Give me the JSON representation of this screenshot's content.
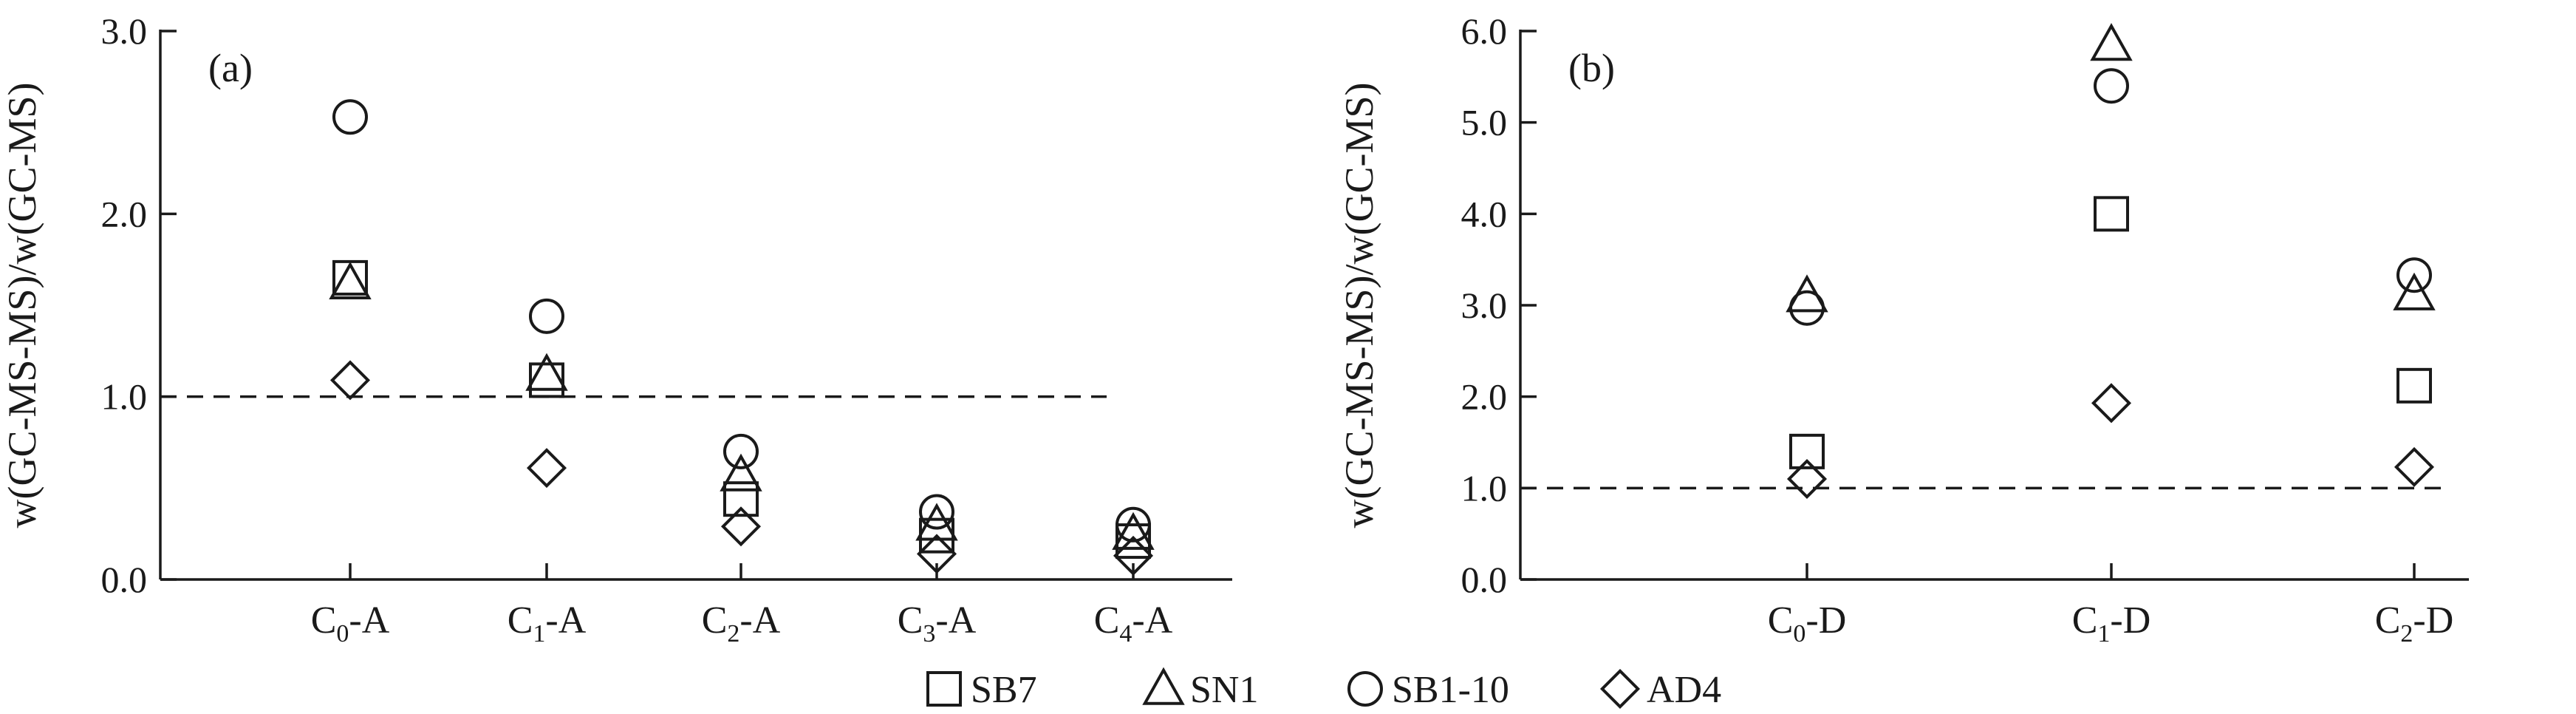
{
  "chart_data": [
    {
      "type": "scatter",
      "panel_label": "(a)",
      "ylabel": "w(GC-MS-MS)/w(GC-MS)",
      "ylim": [
        0,
        3.0
      ],
      "yticks": [
        "0.0",
        "1.0",
        "2.0",
        "3.0"
      ],
      "categories": [
        {
          "base": "C",
          "sub": "0",
          "suffix": "-A"
        },
        {
          "base": "C",
          "sub": "1",
          "suffix": "-A"
        },
        {
          "base": "C",
          "sub": "2",
          "suffix": "-A"
        },
        {
          "base": "C",
          "sub": "3",
          "suffix": "-A"
        },
        {
          "base": "C",
          "sub": "4",
          "suffix": "-A"
        }
      ],
      "reference_line": 1.0,
      "series": [
        {
          "name": "SB7",
          "marker": "square",
          "values": [
            1.65,
            1.09,
            0.44,
            0.24,
            0.21
          ]
        },
        {
          "name": "SN1",
          "marker": "triangle",
          "values": [
            1.62,
            1.12,
            0.57,
            0.3,
            0.25
          ]
        },
        {
          "name": "SB1-10",
          "marker": "circle",
          "values": [
            2.53,
            1.44,
            0.7,
            0.37,
            0.3
          ]
        },
        {
          "name": "AD4",
          "marker": "diamond",
          "values": [
            1.09,
            0.61,
            0.29,
            0.14,
            0.13
          ]
        }
      ]
    },
    {
      "type": "scatter",
      "panel_label": "(b)",
      "ylabel": "w(GC-MS-MS)/w(GC-MS)",
      "ylim": [
        0,
        6.0
      ],
      "yticks": [
        "0.0",
        "1.0",
        "2.0",
        "3.0",
        "4.0",
        "5.0",
        "6.0"
      ],
      "categories": [
        {
          "base": "C",
          "sub": "0",
          "suffix": "-D"
        },
        {
          "base": "C",
          "sub": "1",
          "suffix": "-D"
        },
        {
          "base": "C",
          "sub": "2",
          "suffix": "-D"
        }
      ],
      "reference_line": 1.0,
      "series": [
        {
          "name": "SB7",
          "marker": "square",
          "values": [
            1.4,
            4.0,
            2.12
          ]
        },
        {
          "name": "SN1",
          "marker": "triangle",
          "values": [
            3.1,
            5.85,
            3.12
          ]
        },
        {
          "name": "SB1-10",
          "marker": "circle",
          "values": [
            2.97,
            5.4,
            3.33
          ]
        },
        {
          "name": "AD4",
          "marker": "diamond",
          "values": [
            1.1,
            1.93,
            1.23
          ]
        }
      ]
    }
  ],
  "legend": [
    {
      "label": "SB7",
      "marker": "square"
    },
    {
      "label": "SN1",
      "marker": "triangle"
    },
    {
      "label": "SB1-10",
      "marker": "circle"
    },
    {
      "label": "AD4",
      "marker": "diamond"
    }
  ]
}
